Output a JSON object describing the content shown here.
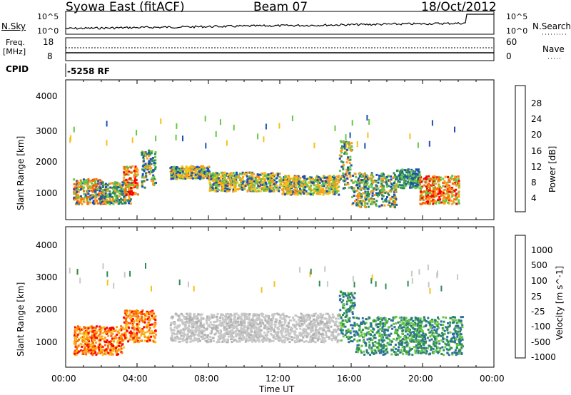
{
  "header": {
    "station": "Syowa East (fitACF)",
    "beam": "Beam 07",
    "date": "18/Oct/2012"
  },
  "noise_panel": {
    "left_label": "N.Sky",
    "right_label": "N.Search",
    "left_ticks": [
      "10^5",
      "10^0"
    ],
    "right_ticks": [
      "10^5",
      "10^0"
    ]
  },
  "freq_panel": {
    "left_label_line1": "Freq.",
    "left_label_line2": "[MHz]",
    "right_label": "Nave",
    "left_ticks": [
      "18",
      "8"
    ],
    "right_ticks": [
      "60",
      "0"
    ]
  },
  "cpid": {
    "label": "CPID",
    "value": "-5258 RF"
  },
  "xaxis": {
    "title": "Time UT",
    "ticks": [
      "00:00",
      "04:00",
      "08:00",
      "12:00",
      "16:00",
      "20:00",
      "00:00"
    ]
  },
  "power_colorbar": {
    "label": "Power [dB]",
    "ticks": [
      "28",
      "24",
      "20",
      "16",
      "12",
      "8",
      "4"
    ],
    "colors": [
      "#ff0000",
      "#ff6a00",
      "#ff9a1a",
      "#f5c21a",
      "#66c842",
      "#2e8b57",
      "#1e4fb5",
      "#0000ff"
    ]
  },
  "velocity_colorbar": {
    "label": "Velocity [m s^-1]",
    "ticks": [
      "1000",
      "500",
      "100",
      "25",
      "-25",
      "-100",
      "-500",
      "-1000"
    ],
    "colors": [
      "#2222bb",
      "#2d6fa0",
      "#2e8b57",
      "#66c842",
      "#c8c8c8",
      "#f5c21a",
      "#ff9a1a",
      "#ff6a00",
      "#ff0000"
    ]
  },
  "chart_data": [
    {
      "type": "heatmap",
      "title": "Power",
      "xlabel": "Time UT",
      "ylabel": "Slant Range [km]",
      "xlim": [
        0,
        24
      ],
      "ylim": [
        180,
        4600
      ],
      "yticks": [
        "4000",
        "3000",
        "2000",
        "1000"
      ],
      "clabel": "Power [dB]",
      "bands": [
        {
          "t0": 0.4,
          "t1": 2.0,
          "r0": 700,
          "r1": 1500,
          "level": "mixed-orange"
        },
        {
          "t0": 2.0,
          "t1": 3.6,
          "r0": 700,
          "r1": 1400,
          "level": "mixed-green"
        },
        {
          "t0": 3.2,
          "t1": 4.0,
          "r0": 1000,
          "r1": 1900,
          "level": "orange-red"
        },
        {
          "t0": 4.2,
          "t1": 5.0,
          "r0": 1200,
          "r1": 2400,
          "level": "mixed-green"
        },
        {
          "t0": 5.8,
          "t1": 8.0,
          "r0": 1500,
          "r1": 1900,
          "level": "green-orange"
        },
        {
          "t0": 8.0,
          "t1": 12.0,
          "r0": 1100,
          "r1": 1700,
          "level": "green-orange"
        },
        {
          "t0": 12.0,
          "t1": 15.3,
          "r0": 1000,
          "r1": 1600,
          "level": "green-orange"
        },
        {
          "t0": 15.3,
          "t1": 16.0,
          "r0": 1200,
          "r1": 2700,
          "level": "mixed-green"
        },
        {
          "t0": 16.0,
          "t1": 18.5,
          "r0": 600,
          "r1": 1700,
          "level": "mixed-green"
        },
        {
          "t0": 18.5,
          "t1": 19.8,
          "r0": 1200,
          "r1": 1800,
          "level": "blue-green"
        },
        {
          "t0": 19.8,
          "t1": 22.0,
          "r0": 700,
          "r1": 1600,
          "level": "orange-red"
        }
      ]
    },
    {
      "type": "heatmap",
      "title": "Velocity",
      "xlabel": "Time UT",
      "ylabel": "Slant Range [km]",
      "xlim": [
        0,
        24
      ],
      "ylim": [
        180,
        4600
      ],
      "yticks": [
        "4000",
        "3000",
        "2000",
        "1000"
      ],
      "clabel": "Velocity [m s^-1]",
      "bands": [
        {
          "t0": 0.4,
          "t1": 3.2,
          "r0": 600,
          "r1": 1500,
          "level": "negative-orange"
        },
        {
          "t0": 3.2,
          "t1": 5.0,
          "r0": 1000,
          "r1": 2000,
          "level": "negative-orange"
        },
        {
          "t0": 5.8,
          "t1": 15.3,
          "r0": 1000,
          "r1": 1900,
          "level": "near-zero-grey"
        },
        {
          "t0": 15.3,
          "t1": 16.2,
          "r0": 1000,
          "r1": 2600,
          "level": "positive-green"
        },
        {
          "t0": 16.2,
          "t1": 22.2,
          "r0": 600,
          "r1": 1800,
          "level": "positive-green"
        }
      ]
    }
  ]
}
